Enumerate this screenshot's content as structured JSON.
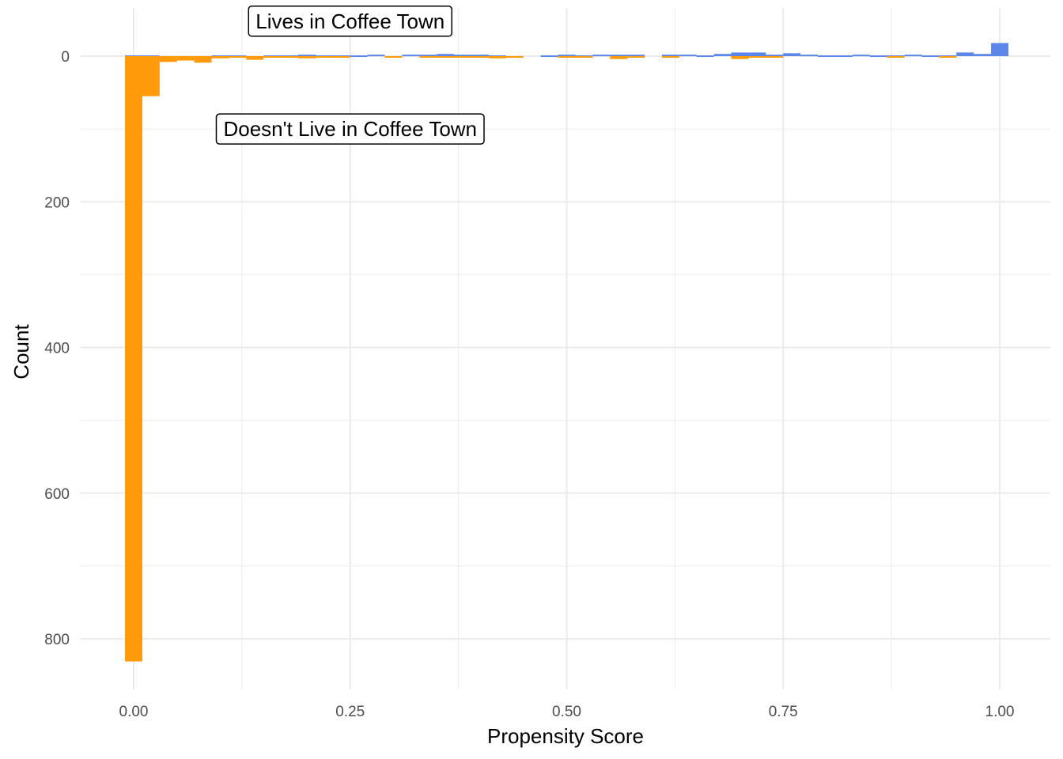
{
  "chart_data": {
    "type": "bar",
    "xlabel": "Propensity Score",
    "ylabel": "Count",
    "xlim": [
      -0.02,
      1.02
    ],
    "ylim": [
      0,
      830
    ],
    "x_ticks": [
      "0.00",
      "0.25",
      "0.50",
      "0.75",
      "1.00"
    ],
    "y_ticks": [
      "0",
      "200",
      "400",
      "600",
      "800"
    ],
    "grid": true,
    "bin_width": 0.02,
    "colors": {
      "treated": "#5b87e8",
      "control": "#ff9a0a"
    },
    "annotations": [
      {
        "label": "Lives in Coffee Town",
        "x": 0.25,
        "y": -48
      },
      {
        "label": "Doesn't Live in Coffee Town",
        "x": 0.25,
        "y": 100
      }
    ],
    "series": [
      {
        "group": "treated",
        "direction": "up",
        "bins_left": [
          -0.01,
          0.01,
          0.03,
          0.05,
          0.07,
          0.09,
          0.11,
          0.13,
          0.15,
          0.17,
          0.19,
          0.21,
          0.23,
          0.25,
          0.27,
          0.29,
          0.31,
          0.33,
          0.35,
          0.37,
          0.39,
          0.41,
          0.43,
          0.45,
          0.47,
          0.49,
          0.51,
          0.53,
          0.55,
          0.57,
          0.59,
          0.61,
          0.63,
          0.65,
          0.67,
          0.69,
          0.71,
          0.73,
          0.75,
          0.77,
          0.79,
          0.81,
          0.83,
          0.85,
          0.87,
          0.89,
          0.91,
          0.93,
          0.95,
          0.97,
          0.99
        ],
        "values": [
          1,
          1,
          0,
          0,
          0,
          1,
          1,
          0,
          1,
          1,
          2,
          1,
          1,
          1,
          2,
          0,
          2,
          2,
          3,
          2,
          2,
          1,
          0,
          0,
          1,
          2,
          1,
          2,
          2,
          2,
          0,
          2,
          2,
          1,
          3,
          5,
          5,
          2,
          4,
          2,
          1,
          1,
          2,
          1,
          1,
          2,
          1,
          1,
          5,
          3,
          18
        ]
      },
      {
        "group": "control",
        "direction": "down",
        "bins_left": [
          -0.01,
          0.01,
          0.03,
          0.05,
          0.07,
          0.09,
          0.11,
          0.13,
          0.15,
          0.17,
          0.19,
          0.21,
          0.23,
          0.25,
          0.27,
          0.29,
          0.31,
          0.33,
          0.35,
          0.37,
          0.39,
          0.41,
          0.43,
          0.45,
          0.47,
          0.49,
          0.51,
          0.53,
          0.55,
          0.57,
          0.59,
          0.61,
          0.63,
          0.65,
          0.67,
          0.69,
          0.71,
          0.73,
          0.75,
          0.77,
          0.79,
          0.81,
          0.83,
          0.85,
          0.87,
          0.89,
          0.91,
          0.93,
          0.95,
          0.97,
          0.99
        ],
        "values": [
          831,
          55,
          8,
          6,
          9,
          3,
          2,
          5,
          2,
          1,
          3,
          2,
          1,
          0,
          0,
          2,
          0,
          2,
          1,
          1,
          1,
          3,
          2,
          0,
          0,
          1,
          2,
          0,
          4,
          1,
          0,
          2,
          0,
          0,
          0,
          4,
          2,
          2,
          0,
          0,
          0,
          0,
          0,
          0,
          1,
          0,
          0,
          1,
          0,
          0,
          0
        ]
      }
    ]
  }
}
